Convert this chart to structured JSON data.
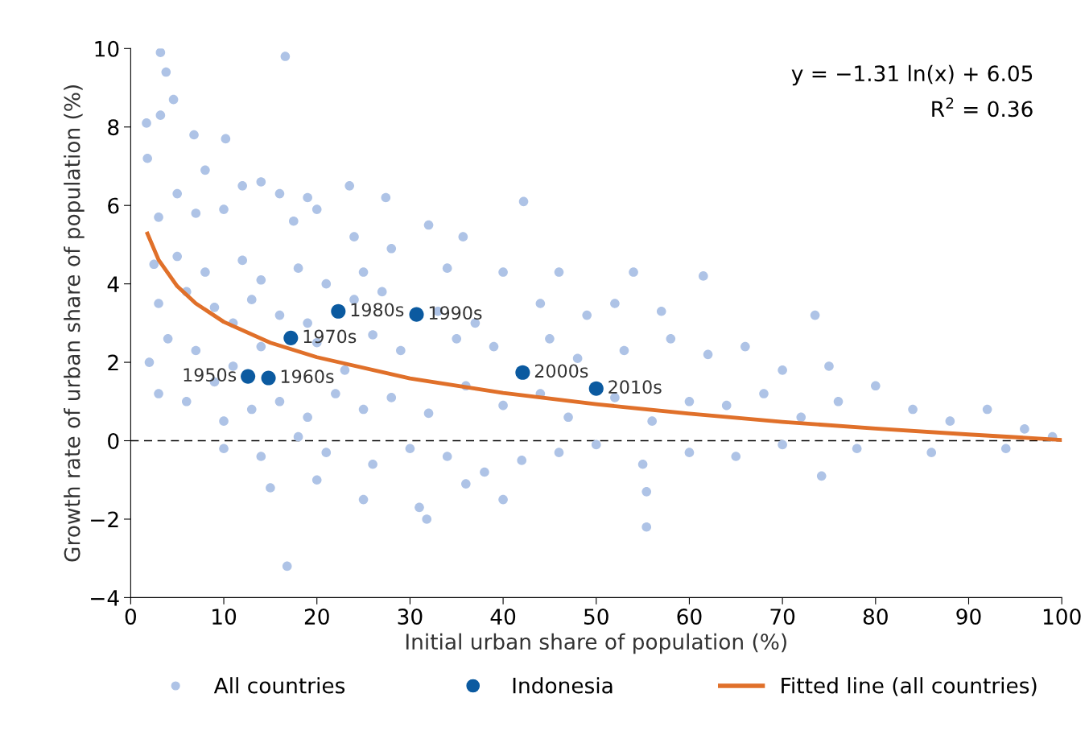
{
  "chart_data": {
    "type": "scatter",
    "xlabel": "Initial urban share of population (%)",
    "ylabel": "Growth rate of urban share of population (%)",
    "xlim": [
      0,
      100
    ],
    "xticks": [
      0,
      10,
      20,
      30,
      40,
      50,
      60,
      70,
      80,
      90,
      100
    ],
    "ylim": [
      -4,
      10
    ],
    "yticks": [
      {
        "value": -4,
        "label": "−4"
      },
      {
        "value": -2,
        "label": "−2"
      },
      0,
      2,
      4,
      6,
      8,
      10
    ],
    "grid": false,
    "legend": "bottom",
    "ref_lines": [
      {
        "axis": "y",
        "value": 0,
        "color": "#000000",
        "line_style": "dashed"
      }
    ],
    "series": [
      {
        "name": "All countries",
        "marker": "circle",
        "color": "#aec3e6",
        "x": [
          3.2,
          16.6,
          3.8,
          1.7,
          3.2,
          4.6,
          6.8,
          10.2,
          1.8,
          8,
          12,
          14,
          16,
          19,
          23.5,
          27.4,
          42.2,
          5,
          3,
          7,
          10,
          17.5,
          20,
          24,
          35.7,
          32,
          28,
          2.5,
          5,
          8,
          12,
          14,
          18,
          21,
          25,
          34,
          40,
          46,
          54,
          61.5,
          3,
          6,
          9,
          11,
          13,
          16,
          19,
          24,
          27,
          33,
          37,
          44,
          49,
          52,
          57,
          73.5,
          2,
          4,
          7,
          9,
          11,
          14,
          20,
          23,
          26,
          29,
          35,
          39,
          45,
          48,
          53,
          58,
          62,
          66,
          70,
          75,
          3,
          6,
          10,
          13,
          16,
          19,
          22,
          25,
          28,
          32,
          36,
          40,
          44,
          47,
          52,
          56,
          60,
          64,
          68,
          72,
          76,
          80,
          84,
          88,
          92,
          96,
          99,
          10,
          14,
          18,
          21,
          26,
          30,
          34,
          38,
          42,
          46,
          50,
          55,
          60,
          65,
          70,
          78,
          86,
          94,
          15,
          20,
          25,
          36,
          40,
          55.4,
          16.8,
          55.4,
          31.8,
          74.2,
          31
        ],
        "values": [
          9.9,
          9.8,
          9.4,
          8.1,
          8.3,
          8.7,
          7.8,
          7.7,
          7.2,
          6.9,
          6.5,
          6.6,
          6.3,
          6.2,
          6.5,
          6.2,
          6.1,
          6.3,
          5.7,
          5.8,
          5.9,
          5.6,
          5.9,
          5.2,
          5.2,
          5.5,
          4.9,
          4.5,
          4.7,
          4.3,
          4.6,
          4.1,
          4.4,
          4.0,
          4.3,
          4.4,
          4.3,
          4.3,
          4.3,
          4.2,
          3.5,
          3.8,
          3.4,
          3.0,
          3.6,
          3.2,
          3.0,
          3.6,
          3.8,
          3.3,
          3.0,
          3.5,
          3.2,
          3.5,
          3.3,
          3.2,
          2.0,
          2.6,
          2.3,
          1.5,
          1.9,
          2.4,
          2.5,
          1.8,
          2.7,
          2.3,
          2.6,
          2.4,
          2.6,
          2.1,
          2.3,
          2.6,
          2.2,
          2.4,
          1.8,
          1.9,
          1.2,
          1.0,
          0.5,
          0.8,
          1.0,
          0.6,
          1.2,
          0.8,
          1.1,
          0.7,
          1.4,
          0.9,
          1.2,
          0.6,
          1.1,
          0.5,
          1.0,
          0.9,
          1.2,
          0.6,
          1.0,
          1.4,
          0.8,
          0.5,
          0.8,
          0.3,
          0.1,
          -0.2,
          -0.4,
          0.1,
          -0.3,
          -0.6,
          -0.2,
          -0.4,
          -0.8,
          -0.5,
          -0.3,
          -0.1,
          -0.6,
          -0.3,
          -0.4,
          -0.1,
          -0.2,
          -0.3,
          -0.2,
          -1.2,
          -1.0,
          -1.5,
          -1.1,
          -1.5,
          -1.3,
          -3.2,
          -2.2,
          -2.0,
          -0.9,
          -1.7
        ]
      },
      {
        "name": "Indonesia",
        "marker": "circle",
        "color": "#0b5aa0",
        "x": [
          12.6,
          14.8,
          17.2,
          22.3,
          30.7,
          42.1,
          50.0
        ],
        "values": [
          1.64,
          1.6,
          2.62,
          3.3,
          3.22,
          1.74,
          1.33
        ]
      },
      {
        "name": "Fitted line (all countries)",
        "type": "line",
        "color": "#e0702a",
        "x": [
          1.8,
          3,
          5,
          7,
          10,
          15,
          20,
          30,
          40,
          50,
          60,
          70,
          80,
          90,
          100
        ],
        "values": [
          5.28,
          4.61,
          3.94,
          3.5,
          3.03,
          2.5,
          2.13,
          1.59,
          1.22,
          0.93,
          0.69,
          0.48,
          0.31,
          0.16,
          0.02
        ]
      }
    ],
    "annotations": [
      "y = −1.31 ln(x) + 6.05",
      "R$^{2}$ = 0.36",
      {
        "text": "1950s",
        "x": 12.6,
        "y": 1.64
      },
      {
        "text": "1960s",
        "x": 14.8,
        "y": 1.6
      },
      {
        "text": "1970s",
        "x": 17.2,
        "y": 2.62
      },
      {
        "text": "1980s",
        "x": 22.3,
        "y": 3.3
      },
      {
        "text": "1990s",
        "x": 30.7,
        "y": 3.22
      },
      {
        "text": "2000s",
        "x": 42.1,
        "y": 1.74
      },
      {
        "text": "2010s",
        "x": 50.0,
        "y": 1.33
      }
    ]
  }
}
